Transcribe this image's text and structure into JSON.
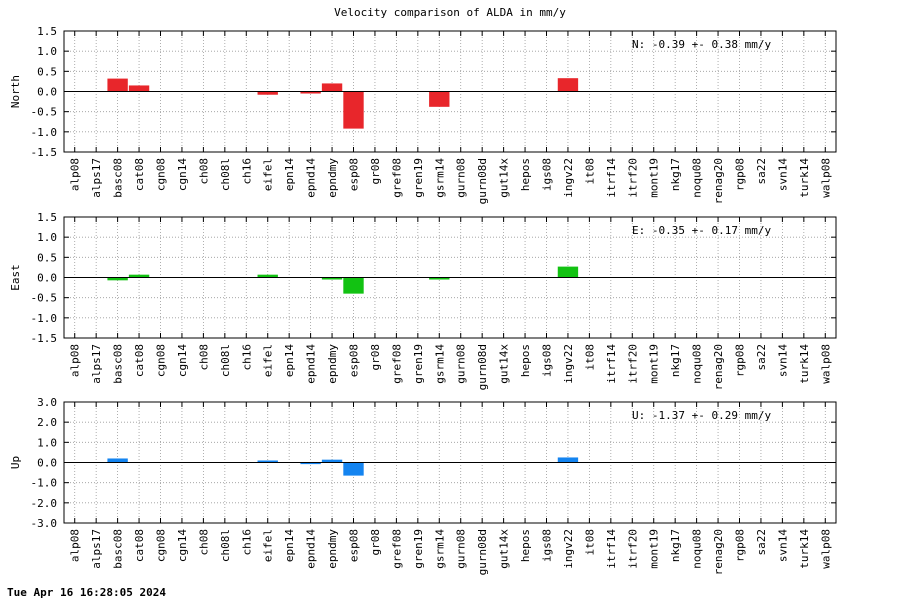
{
  "title": "Velocity comparison of ALDA in mm/y",
  "footer_timestamp": "Tue Apr 16 16:28:05 2024",
  "chart_data": [
    {
      "type": "bar",
      "ylabel": "North",
      "annotation": "N:  -0.39 +-  0.38 mm/y",
      "ylim": [
        -1.5,
        1.5
      ],
      "yticks": [
        "1.5",
        "1.0",
        "0.5",
        "0.0",
        "-0.5",
        "-1.0",
        "-1.5"
      ],
      "grid": true,
      "color": "#e8262b",
      "categories": [
        "alp08",
        "alps17",
        "basc08",
        "cat08",
        "cgn08",
        "cgn14",
        "ch08",
        "ch08l",
        "ch16",
        "eifel",
        "epn14",
        "epnd14",
        "epndmy",
        "esp08",
        "gr08",
        "gref08",
        "gren19",
        "gsrm14",
        "gurn08",
        "gurn08d",
        "gut14x",
        "hepos",
        "igs08",
        "ingv22",
        "it08",
        "itrf14",
        "itrf20",
        "mont19",
        "nkg17",
        "noqu08",
        "renag20",
        "rgp08",
        "sa22",
        "svn14",
        "turk14",
        "walp08"
      ],
      "values": [
        0,
        0,
        0.32,
        0.15,
        0,
        0,
        0,
        0,
        0,
        -0.08,
        0,
        -0.05,
        0.2,
        -0.92,
        0,
        0,
        0,
        -0.38,
        0,
        0,
        0,
        0,
        0,
        0.33,
        0,
        0,
        0,
        0,
        0,
        0,
        0,
        0,
        0,
        0,
        0,
        0
      ]
    },
    {
      "type": "bar",
      "ylabel": "East",
      "annotation": "E:  -0.35 +-  0.17 mm/y",
      "ylim": [
        -1.5,
        1.5
      ],
      "yticks": [
        "1.5",
        "1.0",
        "0.5",
        "0.0",
        "-0.5",
        "-1.0",
        "-1.5"
      ],
      "grid": true,
      "color": "#12c212",
      "categories": [
        "alp08",
        "alps17",
        "basc08",
        "cat08",
        "cgn08",
        "cgn14",
        "ch08",
        "ch08l",
        "ch16",
        "eifel",
        "epn14",
        "epnd14",
        "epndmy",
        "esp08",
        "gr08",
        "gref08",
        "gren19",
        "gsrm14",
        "gurn08",
        "gurn08d",
        "gut14x",
        "hepos",
        "igs08",
        "ingv22",
        "it08",
        "itrf14",
        "itrf20",
        "mont19",
        "nkg17",
        "noqu08",
        "renag20",
        "rgp08",
        "sa22",
        "svn14",
        "turk14",
        "walp08"
      ],
      "values": [
        0,
        0,
        -0.07,
        0.07,
        0,
        0,
        0,
        0,
        0,
        0.07,
        0,
        0,
        -0.05,
        -0.4,
        0,
        0,
        0,
        -0.05,
        0,
        0,
        0,
        0,
        0,
        0.27,
        0,
        0,
        0,
        0,
        0,
        0,
        0,
        0,
        0,
        0,
        0,
        0
      ]
    },
    {
      "type": "bar",
      "ylabel": "Up",
      "annotation": "U:  -1.37 +-  0.29 mm/y",
      "ylim": [
        -3.0,
        3.0
      ],
      "yticks": [
        "3.0",
        "2.0",
        "1.0",
        "0.0",
        "-1.0",
        "-2.0",
        "-3.0"
      ],
      "grid": true,
      "color": "#1484f0",
      "categories": [
        "alp08",
        "alps17",
        "basc08",
        "cat08",
        "cgn08",
        "cgn14",
        "ch08",
        "ch08l",
        "ch16",
        "eifel",
        "epn14",
        "epnd14",
        "epndmy",
        "esp08",
        "gr08",
        "gref08",
        "gren19",
        "gsrm14",
        "gurn08",
        "gurn08d",
        "gut14x",
        "hepos",
        "igs08",
        "ingv22",
        "it08",
        "itrf14",
        "itrf20",
        "mont19",
        "nkg17",
        "noqu08",
        "renag20",
        "rgp08",
        "sa22",
        "svn14",
        "turk14",
        "walp08"
      ],
      "values": [
        0,
        0,
        0.2,
        0,
        0,
        0,
        0,
        0,
        0,
        0.1,
        0,
        -0.08,
        0.14,
        -0.65,
        0,
        0,
        0,
        0,
        0,
        0,
        0,
        0,
        0,
        0.25,
        0,
        0,
        0,
        0,
        0,
        0,
        0,
        0,
        0,
        0,
        0,
        0
      ]
    }
  ]
}
